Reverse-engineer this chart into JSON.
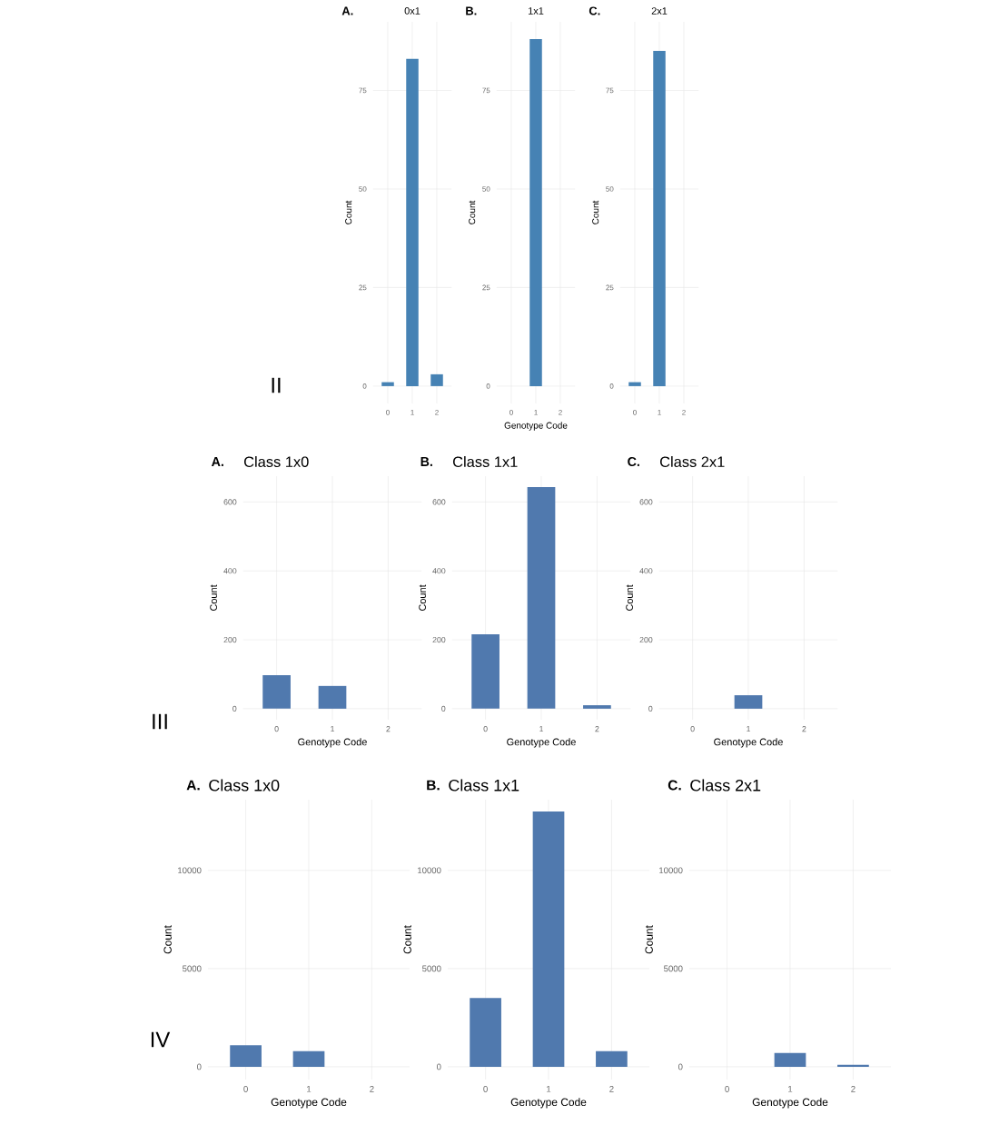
{
  "chart_data": [
    {
      "type": "bar",
      "title": "0x1",
      "categories": [
        "0",
        "1",
        "2"
      ],
      "values": [
        1,
        83,
        3
      ],
      "color": "#4682b4",
      "ylim": [
        -4.4,
        92.4
      ],
      "yticks": [
        0,
        25,
        50,
        75
      ],
      "grid": true,
      "ylabel": "Count",
      "annotations": [
        "A.",
        "II"
      ]
    },
    {
      "type": "bar",
      "title": "1x1",
      "categories": [
        "0",
        "1",
        "2"
      ],
      "values": [
        0,
        88,
        0
      ],
      "color": "#4682b4",
      "ylim": [
        -4.4,
        92.4
      ],
      "yticks": [
        0,
        25,
        50,
        75
      ],
      "grid": true,
      "ylabel": "Count",
      "xlabel": "Genotype Code",
      "annotations": [
        "B."
      ]
    },
    {
      "type": "bar",
      "title": "2x1",
      "categories": [
        "0",
        "1",
        "2"
      ],
      "values": [
        1,
        85,
        0
      ],
      "color": "#4682b4",
      "ylim": [
        -4.4,
        92.4
      ],
      "yticks": [
        0,
        25,
        50,
        75
      ],
      "grid": true,
      "ylabel": "Count",
      "annotations": [
        "C."
      ]
    },
    {
      "type": "bar",
      "title": "Class 1x0",
      "categories": [
        "0",
        "1",
        "2"
      ],
      "values": [
        97,
        66,
        0
      ],
      "color": "#5079ae",
      "ylim": [
        -32,
        675
      ],
      "yticks": [
        0,
        200,
        400,
        600
      ],
      "grid": true,
      "ylabel": "Count",
      "xlabel": "Genotype Code",
      "annotations": [
        "A.",
        "III"
      ]
    },
    {
      "type": "bar",
      "title": "Class 1x1",
      "categories": [
        "0",
        "1",
        "2"
      ],
      "values": [
        216,
        643,
        10
      ],
      "color": "#5079ae",
      "ylim": [
        -32,
        675
      ],
      "yticks": [
        0,
        200,
        400,
        600
      ],
      "grid": true,
      "ylabel": "Count",
      "xlabel": "Genotype Code",
      "annotations": [
        "B."
      ]
    },
    {
      "type": "bar",
      "title": "Class 2x1",
      "categories": [
        "0",
        "1",
        "2"
      ],
      "values": [
        0,
        39,
        0
      ],
      "color": "#5079ae",
      "ylim": [
        -32,
        675
      ],
      "yticks": [
        0,
        200,
        400,
        600
      ],
      "grid": true,
      "ylabel": "Count",
      "xlabel": "Genotype Code",
      "annotations": [
        "C."
      ]
    },
    {
      "type": "bar",
      "title": "Class 1x0",
      "categories": [
        "0",
        "1",
        "2"
      ],
      "values": [
        1100,
        800,
        0
      ],
      "color": "#5079ae",
      "ylim": [
        -650,
        13600
      ],
      "yticks": [
        0,
        5000,
        10000
      ],
      "grid": true,
      "ylabel": "Count",
      "xlabel": "Genotype Code",
      "annotations": [
        "A.",
        "IV"
      ]
    },
    {
      "type": "bar",
      "title": "Class 1x1",
      "categories": [
        "0",
        "1",
        "2"
      ],
      "values": [
        3500,
        13000,
        800
      ],
      "color": "#5079ae",
      "ylim": [
        -650,
        13600
      ],
      "yticks": [
        0,
        5000,
        10000
      ],
      "grid": true,
      "ylabel": "Count",
      "xlabel": "Genotype Code",
      "annotations": [
        "B."
      ]
    },
    {
      "type": "bar",
      "title": "Class 2x1",
      "categories": [
        "0",
        "1",
        "2"
      ],
      "values": [
        0,
        700,
        100
      ],
      "color": "#5079ae",
      "ylim": [
        -650,
        13600
      ],
      "yticks": [
        0,
        5000,
        10000
      ],
      "grid": true,
      "ylabel": "Count",
      "xlabel": "Genotype Code",
      "annotations": [
        "C."
      ]
    }
  ]
}
